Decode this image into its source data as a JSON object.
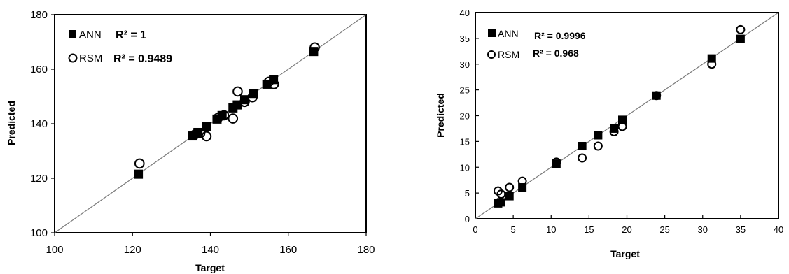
{
  "chart_data": [
    {
      "type": "scatter",
      "title": "",
      "xlabel": "Target",
      "ylabel": "Predicted",
      "xlim": [
        100,
        180
      ],
      "ylim": [
        100,
        180
      ],
      "xticks": [
        "100",
        "120",
        "140",
        "160",
        "180"
      ],
      "yticks": [
        "100",
        "120",
        "140",
        "160",
        "180"
      ],
      "grid": false,
      "reference_line": "y = x",
      "legend_position": "top-left",
      "series": [
        {
          "name": "ANN",
          "r2_label": "R² = 1",
          "marker": "filled-square",
          "color": "#000000",
          "points": [
            [
              121.5,
              121.5
            ],
            [
              135.5,
              135.5
            ],
            [
              136.8,
              136.8
            ],
            [
              139,
              139
            ],
            [
              141.7,
              141.7
            ],
            [
              143,
              143
            ],
            [
              145.8,
              145.8
            ],
            [
              146.9,
              146.9
            ],
            [
              148.8,
              148.8
            ],
            [
              151.1,
              151.1
            ],
            [
              154.5,
              154.5
            ],
            [
              156.2,
              156.2
            ],
            [
              166.5,
              166.5
            ]
          ]
        },
        {
          "name": "RSM",
          "r2_label": "R² = 0.9489",
          "marker": "open-circle",
          "color": "#000000",
          "points": [
            [
              121.8,
              125.4
            ],
            [
              136,
              136
            ],
            [
              137.4,
              136.5
            ],
            [
              139,
              135.4
            ],
            [
              142,
              142.2
            ],
            [
              143.5,
              143.1
            ],
            [
              145.8,
              141.9
            ],
            [
              147,
              151.8
            ],
            [
              148.8,
              148
            ],
            [
              150.8,
              149.7
            ],
            [
              155,
              155.4
            ],
            [
              156.3,
              154.5
            ],
            [
              166.8,
              168
            ]
          ]
        }
      ]
    },
    {
      "type": "scatter",
      "title": "",
      "xlabel": "Target",
      "ylabel": "Predicted",
      "xlim": [
        0,
        40
      ],
      "ylim": [
        0,
        40
      ],
      "xticks": [
        "0",
        "5",
        "10",
        "15",
        "20",
        "25",
        "30",
        "35",
        "40"
      ],
      "yticks": [
        "0",
        "5",
        "10",
        "15",
        "20",
        "25",
        "30",
        "35",
        "40"
      ],
      "grid": false,
      "reference_line": "y = x",
      "legend_position": "top-left",
      "series": [
        {
          "name": "ANN",
          "r2_label": "R² = 0.9996",
          "marker": "filled-square",
          "color": "#000000",
          "points": [
            [
              3,
              3
            ],
            [
              3.4,
              3.2
            ],
            [
              4.5,
              4.4
            ],
            [
              6.2,
              6.1
            ],
            [
              10.7,
              10.7
            ],
            [
              14.1,
              14.1
            ],
            [
              16.2,
              16.2
            ],
            [
              18.3,
              17.5
            ],
            [
              19.4,
              19.2
            ],
            [
              23.9,
              23.9
            ],
            [
              31.2,
              31.1
            ],
            [
              35,
              34.9
            ]
          ]
        },
        {
          "name": "RSM",
          "r2_label": "R² = 0.968",
          "marker": "open-circle",
          "color": "#000000",
          "points": [
            [
              3,
              5.4
            ],
            [
              3.4,
              4.8
            ],
            [
              4.5,
              6.1
            ],
            [
              6.2,
              7.3
            ],
            [
              10.7,
              11
            ],
            [
              14.1,
              11.8
            ],
            [
              16.2,
              14.1
            ],
            [
              18.3,
              16.9
            ],
            [
              19.4,
              17.9
            ],
            [
              23.9,
              23.9
            ],
            [
              31.2,
              30
            ],
            [
              35,
              36.7
            ]
          ]
        }
      ]
    }
  ]
}
